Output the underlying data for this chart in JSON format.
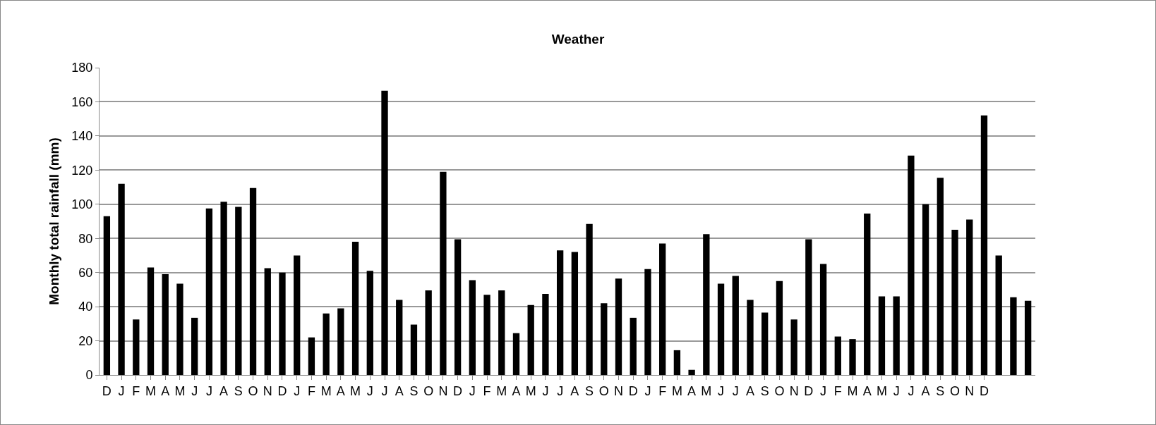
{
  "chart_data": {
    "type": "bar",
    "title": "Weather",
    "ylabel": "Monthly total rainfall (mm)",
    "categories": [
      "D",
      "J",
      "F",
      "M",
      "A",
      "M",
      "J",
      "J",
      "A",
      "S",
      "O",
      "N",
      "D",
      "J",
      "F",
      "M",
      "A",
      "M",
      "J",
      "J",
      "A",
      "S",
      "O",
      "N",
      "D",
      "J",
      "F",
      "M",
      "A",
      "M",
      "J",
      "J",
      "A",
      "S",
      "O",
      "N",
      "D",
      "J",
      "F",
      "M",
      "A",
      "M",
      "J",
      "J",
      "A",
      "S",
      "O",
      "N",
      "D",
      "J",
      "F",
      "M",
      "A",
      "M",
      "J",
      "J",
      "A",
      "S",
      "O",
      "N",
      "D",
      null,
      null,
      null
    ],
    "values": [
      93,
      112,
      32.5,
      63,
      59,
      53.5,
      33.5,
      97.5,
      101.5,
      98.5,
      109.5,
      62.5,
      60,
      70,
      22,
      36,
      39,
      78,
      61,
      166.5,
      44,
      29.5,
      49.5,
      119,
      79.5,
      55.5,
      47,
      49.5,
      24.5,
      41,
      47.5,
      73,
      72,
      88.5,
      42,
      56.5,
      33.5,
      62,
      77,
      14.5,
      3,
      82.5,
      53.5,
      58,
      44,
      36.5,
      55,
      32.5,
      79.5,
      65,
      22.5,
      21,
      94.5,
      46,
      46,
      128.5,
      100,
      115.5,
      85,
      91,
      152,
      70,
      45.5,
      43.5
    ],
    "color": "#000000",
    "ylim": [
      0,
      180
    ],
    "yticks": [
      0,
      20,
      40,
      60,
      80,
      100,
      120,
      140,
      160,
      180
    ],
    "grid": "y"
  }
}
